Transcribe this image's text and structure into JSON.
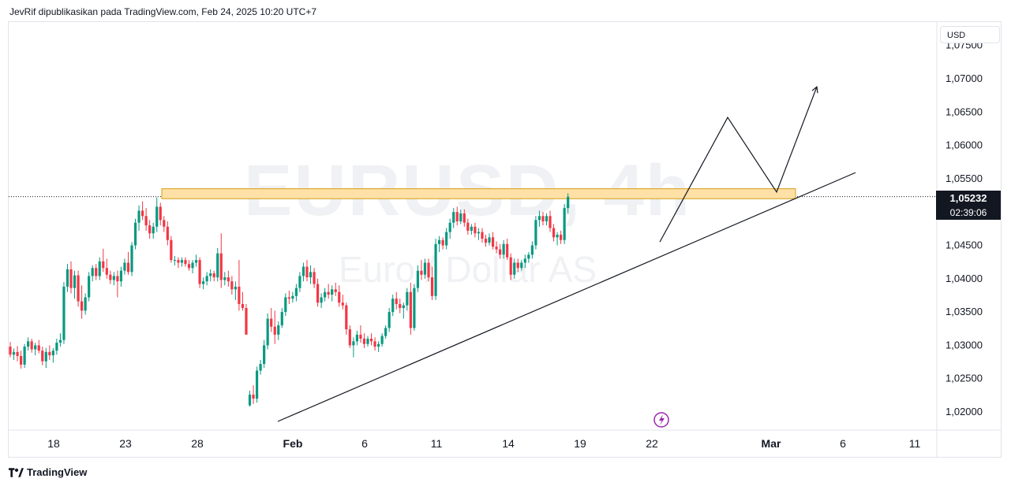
{
  "header": {
    "text": "JevRif dipublikasikan pada TradingView.com, Feb 24, 2025 10:20 UTC+7"
  },
  "watermark": {
    "symbol": "EURUSD, 4h",
    "description": "Euro / Dollar AS"
  },
  "currency_label": "USD",
  "current_price": {
    "value": "1,05232",
    "countdown": "02:39:06"
  },
  "brand": "TradingView",
  "colors": {
    "up": "#089981",
    "down": "#f23645",
    "zone_fill": "#ffe0a6",
    "zone_border": "#d4a017",
    "line": "#131722"
  },
  "chart_data": {
    "type": "candlestick",
    "symbol": "EURUSD",
    "timeframe": "4h",
    "y_axis": {
      "ticks": [
        "1,02000",
        "1,02500",
        "1,03000",
        "1,03500",
        "1,04000",
        "1,04500",
        "1,05000",
        "1,05500",
        "1,06000",
        "1,06500",
        "1,07000"
      ],
      "range": [
        1.0185,
        1.076
      ]
    },
    "x_axis": {
      "ticks": [
        "18",
        "23",
        "28",
        "Feb",
        "6",
        "11",
        "14",
        "19",
        "22",
        "Mar",
        "6",
        "11"
      ],
      "bold_ticks": [
        "Feb",
        "Mar"
      ]
    },
    "candles": [
      [
        1.0298,
        1.0305,
        1.0282,
        1.0286
      ],
      [
        1.0286,
        1.0295,
        1.0278,
        1.029
      ],
      [
        1.029,
        1.0299,
        1.0276,
        1.0284
      ],
      [
        1.0284,
        1.0292,
        1.0265,
        1.0271
      ],
      [
        1.0271,
        1.0302,
        1.0266,
        1.0298
      ],
      [
        1.0298,
        1.0312,
        1.0292,
        1.0306
      ],
      [
        1.0306,
        1.031,
        1.0289,
        1.0294
      ],
      [
        1.0294,
        1.0304,
        1.0285,
        1.03
      ],
      [
        1.03,
        1.0308,
        1.0288,
        1.0292
      ],
      [
        1.0292,
        1.0298,
        1.027,
        1.0276
      ],
      [
        1.0276,
        1.0296,
        1.0266,
        1.029
      ],
      [
        1.029,
        1.03,
        1.0278,
        1.0285
      ],
      [
        1.0285,
        1.0296,
        1.0274,
        1.0292
      ],
      [
        1.0292,
        1.031,
        1.0286,
        1.0304
      ],
      [
        1.0304,
        1.0318,
        1.0298,
        1.0308
      ],
      [
        1.0308,
        1.0395,
        1.0302,
        1.0388
      ],
      [
        1.0388,
        1.0422,
        1.038,
        1.0414
      ],
      [
        1.0414,
        1.0426,
        1.0378,
        1.0386
      ],
      [
        1.0386,
        1.0412,
        1.037,
        1.0405
      ],
      [
        1.0405,
        1.0412,
        1.0358,
        1.0366
      ],
      [
        1.0366,
        1.039,
        1.034,
        1.0352
      ],
      [
        1.0352,
        1.0378,
        1.0346,
        1.0372
      ],
      [
        1.0372,
        1.041,
        1.0366,
        1.0404
      ],
      [
        1.0404,
        1.042,
        1.0396,
        1.0416
      ],
      [
        1.0416,
        1.0422,
        1.0398,
        1.0404
      ],
      [
        1.0404,
        1.0432,
        1.0398,
        1.0426
      ],
      [
        1.0426,
        1.0445,
        1.041,
        1.0416
      ],
      [
        1.0416,
        1.043,
        1.04,
        1.0406
      ],
      [
        1.0406,
        1.0412,
        1.0392,
        1.0398
      ],
      [
        1.0398,
        1.041,
        1.039,
        1.0404
      ],
      [
        1.0404,
        1.0412,
        1.0372,
        1.0396
      ],
      [
        1.0396,
        1.0418,
        1.0388,
        1.0412
      ],
      [
        1.0412,
        1.043,
        1.0406,
        1.0424
      ],
      [
        1.0424,
        1.044,
        1.0406,
        1.041
      ],
      [
        1.041,
        1.0455,
        1.0404,
        1.045
      ],
      [
        1.045,
        1.049,
        1.0444,
        1.0484
      ],
      [
        1.0484,
        1.051,
        1.0472,
        1.0502
      ],
      [
        1.0502,
        1.0516,
        1.0488,
        1.0494
      ],
      [
        1.0494,
        1.0506,
        1.0472,
        1.048
      ],
      [
        1.048,
        1.0488,
        1.046,
        1.0468
      ],
      [
        1.0468,
        1.0484,
        1.046,
        1.0478
      ],
      [
        1.0478,
        1.0522,
        1.047,
        1.0508
      ],
      [
        1.0508,
        1.0514,
        1.048,
        1.0488
      ],
      [
        1.0488,
        1.0494,
        1.047,
        1.0478
      ],
      [
        1.0478,
        1.0486,
        1.045,
        1.0458
      ],
      [
        1.0458,
        1.0464,
        1.0424,
        1.0428
      ],
      [
        1.0428,
        1.0434,
        1.042,
        1.0428
      ],
      [
        1.0428,
        1.0432,
        1.0416,
        1.0424
      ],
      [
        1.0424,
        1.0432,
        1.0418,
        1.0428
      ],
      [
        1.0428,
        1.0432,
        1.0418,
        1.0422
      ],
      [
        1.0422,
        1.0428,
        1.0412,
        1.0416
      ],
      [
        1.0416,
        1.0428,
        1.0408,
        1.0424
      ],
      [
        1.0424,
        1.0436,
        1.0418,
        1.0428
      ],
      [
        1.0428,
        1.0432,
        1.0386,
        1.0392
      ],
      [
        1.0392,
        1.0402,
        1.0384,
        1.0396
      ],
      [
        1.0396,
        1.041,
        1.039,
        1.0404
      ],
      [
        1.0404,
        1.0414,
        1.0396,
        1.0408
      ],
      [
        1.0408,
        1.0412,
        1.0396,
        1.0402
      ],
      [
        1.0402,
        1.0446,
        1.0396,
        1.0438
      ],
      [
        1.0438,
        1.0468,
        1.0386,
        1.0398
      ],
      [
        1.0398,
        1.041,
        1.039,
        1.0402
      ],
      [
        1.0402,
        1.0412,
        1.0388,
        1.0396
      ],
      [
        1.0396,
        1.0404,
        1.0376,
        1.0384
      ],
      [
        1.0384,
        1.0396,
        1.0368,
        1.0388
      ],
      [
        1.0388,
        1.0428,
        1.0352,
        1.0362
      ],
      [
        1.0362,
        1.038,
        1.0352,
        1.0356
      ],
      [
        1.0356,
        1.0362,
        1.0316,
        1.0316
      ],
      [
        1.021,
        1.0232,
        1.0208,
        1.0226
      ],
      [
        1.0226,
        1.024,
        1.0212,
        1.022
      ],
      [
        1.022,
        1.0268,
        1.0214,
        1.0262
      ],
      [
        1.0262,
        1.0278,
        1.0256,
        1.0272
      ],
      [
        1.0272,
        1.0308,
        1.0266,
        1.03
      ],
      [
        1.03,
        1.0348,
        1.0294,
        1.034
      ],
      [
        1.034,
        1.0356,
        1.032,
        1.0328
      ],
      [
        1.0328,
        1.0352,
        1.0302,
        1.0316
      ],
      [
        1.0316,
        1.0336,
        1.0308,
        1.033
      ],
      [
        1.033,
        1.0356,
        1.0326,
        1.035
      ],
      [
        1.035,
        1.0378,
        1.0344,
        1.0372
      ],
      [
        1.0372,
        1.0382,
        1.0362,
        1.037
      ],
      [
        1.037,
        1.038,
        1.0364,
        1.0374
      ],
      [
        1.0374,
        1.0392,
        1.0366,
        1.0386
      ],
      [
        1.0386,
        1.041,
        1.038,
        1.0404
      ],
      [
        1.0404,
        1.0424,
        1.0396,
        1.0418
      ],
      [
        1.0418,
        1.0428,
        1.0396,
        1.0402
      ],
      [
        1.0402,
        1.042,
        1.0392,
        1.041
      ],
      [
        1.041,
        1.0416,
        1.0386,
        1.0392
      ],
      [
        1.0392,
        1.04,
        1.0358,
        1.0364
      ],
      [
        1.0364,
        1.0378,
        1.0356,
        1.0372
      ],
      [
        1.0372,
        1.0386,
        1.0366,
        1.038
      ],
      [
        1.038,
        1.0392,
        1.037,
        1.0376
      ],
      [
        1.0376,
        1.039,
        1.0366,
        1.0384
      ],
      [
        1.0384,
        1.0394,
        1.0374,
        1.038
      ],
      [
        1.038,
        1.039,
        1.0358,
        1.0364
      ],
      [
        1.0364,
        1.0376,
        1.0354,
        1.036
      ],
      [
        1.036,
        1.0364,
        1.0316,
        1.0324
      ],
      [
        1.0324,
        1.033,
        1.0296,
        1.03
      ],
      [
        1.03,
        1.0312,
        1.0282,
        1.0306
      ],
      [
        1.0306,
        1.0322,
        1.03,
        1.0316
      ],
      [
        1.0316,
        1.033,
        1.0304,
        1.031
      ],
      [
        1.031,
        1.0318,
        1.0296,
        1.0302
      ],
      [
        1.0302,
        1.0314,
        1.0298,
        1.031
      ],
      [
        1.031,
        1.0318,
        1.03,
        1.0306
      ],
      [
        1.0306,
        1.0312,
        1.0292,
        1.0298
      ],
      [
        1.0298,
        1.0306,
        1.029,
        1.0302
      ],
      [
        1.0302,
        1.0318,
        1.0298,
        1.0314
      ],
      [
        1.0314,
        1.033,
        1.031,
        1.0326
      ],
      [
        1.0326,
        1.0356,
        1.032,
        1.035
      ],
      [
        1.035,
        1.0376,
        1.0344,
        1.037
      ],
      [
        1.037,
        1.038,
        1.0354,
        1.0362
      ],
      [
        1.0362,
        1.037,
        1.0348,
        1.0356
      ],
      [
        1.0356,
        1.0364,
        1.034,
        1.036
      ],
      [
        1.036,
        1.0386,
        1.0352,
        1.038
      ],
      [
        1.038,
        1.0394,
        1.0316,
        1.0326
      ],
      [
        1.0326,
        1.0392,
        1.0322,
        1.0386
      ],
      [
        1.0386,
        1.042,
        1.038,
        1.0412
      ],
      [
        1.0412,
        1.0428,
        1.0398,
        1.0406
      ],
      [
        1.0406,
        1.043,
        1.04,
        1.0424
      ],
      [
        1.0424,
        1.043,
        1.0396,
        1.0402
      ],
      [
        1.0402,
        1.0418,
        1.0368,
        1.0374
      ],
      [
        1.0374,
        1.046,
        1.0368,
        1.0452
      ],
      [
        1.0452,
        1.0464,
        1.044,
        1.0458
      ],
      [
        1.0458,
        1.0462,
        1.0444,
        1.045
      ],
      [
        1.045,
        1.0476,
        1.0444,
        1.047
      ],
      [
        1.047,
        1.049,
        1.046,
        1.0484
      ],
      [
        1.0484,
        1.0506,
        1.0476,
        1.05
      ],
      [
        1.05,
        1.0508,
        1.048,
        1.0486
      ],
      [
        1.0486,
        1.0504,
        1.0482,
        1.0498
      ],
      [
        1.0498,
        1.0504,
        1.0478,
        1.0484
      ],
      [
        1.0484,
        1.049,
        1.0466,
        1.0472
      ],
      [
        1.0472,
        1.0482,
        1.0466,
        1.0478
      ],
      [
        1.0478,
        1.0484,
        1.0462,
        1.0468
      ],
      [
        1.0468,
        1.0476,
        1.0458,
        1.047
      ],
      [
        1.047,
        1.0476,
        1.0454,
        1.046
      ],
      [
        1.046,
        1.0466,
        1.0448,
        1.0454
      ],
      [
        1.0454,
        1.0468,
        1.045,
        1.0462
      ],
      [
        1.0462,
        1.047,
        1.0444,
        1.0448
      ],
      [
        1.0448,
        1.0456,
        1.0438,
        1.0444
      ],
      [
        1.0444,
        1.0452,
        1.043,
        1.0436
      ],
      [
        1.0436,
        1.0458,
        1.043,
        1.0452
      ],
      [
        1.0452,
        1.046,
        1.0428,
        1.0432
      ],
      [
        1.0432,
        1.0438,
        1.0398,
        1.0406
      ],
      [
        1.0406,
        1.043,
        1.04,
        1.0424
      ],
      [
        1.0424,
        1.043,
        1.041,
        1.0416
      ],
      [
        1.0416,
        1.0428,
        1.0412,
        1.0424
      ],
      [
        1.0424,
        1.0436,
        1.0416,
        1.043
      ],
      [
        1.043,
        1.044,
        1.0424,
        1.0436
      ],
      [
        1.0436,
        1.0456,
        1.043,
        1.045
      ],
      [
        1.045,
        1.0494,
        1.0444,
        1.0488
      ],
      [
        1.0488,
        1.0502,
        1.0478,
        1.0494
      ],
      [
        1.0494,
        1.05,
        1.048,
        1.0486
      ],
      [
        1.0486,
        1.0498,
        1.048,
        1.0494
      ],
      [
        1.0494,
        1.0502,
        1.047,
        1.0476
      ],
      [
        1.0476,
        1.0482,
        1.0456,
        1.0462
      ],
      [
        1.0462,
        1.047,
        1.045,
        1.0466
      ],
      [
        1.0466,
        1.0472,
        1.0452,
        1.0458
      ],
      [
        1.0458,
        1.0512,
        1.0452,
        1.0506
      ],
      [
        1.0506,
        1.0528,
        1.0498,
        1.0523
      ]
    ],
    "annotations": {
      "resistance_zone": {
        "x_from_index": 36,
        "x_to": "Mar 2",
        "price_low": 1.052,
        "price_high": 1.0535
      },
      "trendline": {
        "from": [
          "Jan 31",
          1.02
        ],
        "to": [
          "Mar 8",
          1.0545
        ]
      },
      "projection_path": [
        [
          "Feb 22",
          1.0455
        ],
        [
          "Feb 26",
          1.0642
        ],
        [
          "Mar 1",
          1.053
        ],
        [
          "Mar 4",
          1.0688
        ]
      ],
      "current_price_line": 1.05232
    }
  }
}
